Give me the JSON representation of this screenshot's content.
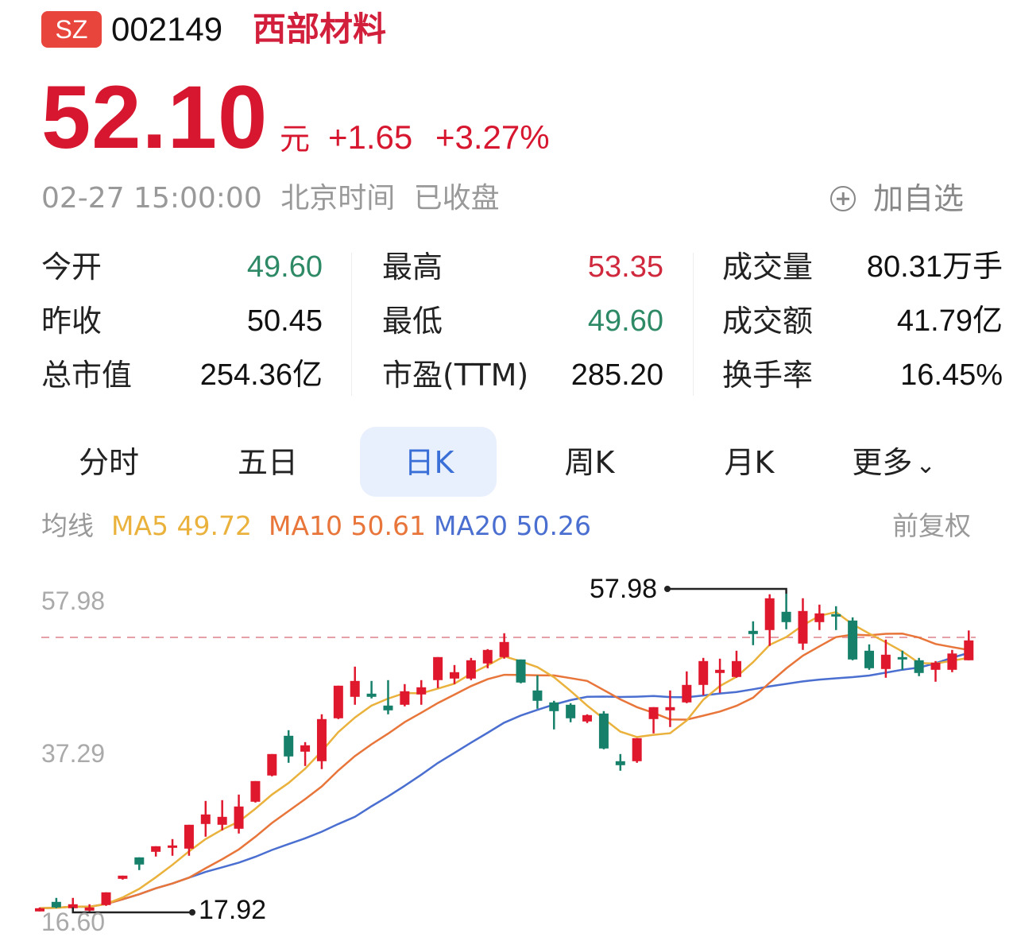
{
  "header": {
    "exchange": "SZ",
    "code": "002149",
    "name": "西部材料"
  },
  "quote": {
    "price": "52.10",
    "unit": "元",
    "change": "+1.65",
    "change_pct": "+3.27%",
    "timestamp": "02-27 15:00:00",
    "timezone": "北京时间",
    "status": "已收盘",
    "add_watchlist": "加自选",
    "add_icon": "plus-circle-icon"
  },
  "stats": [
    {
      "label": "今开",
      "value": "49.60",
      "tone": "green"
    },
    {
      "label": "昨收",
      "value": "50.45",
      "tone": "neutral"
    },
    {
      "label": "总市值",
      "value": "254.36亿",
      "tone": "neutral"
    },
    {
      "label": "最高",
      "value": "53.35",
      "tone": "red"
    },
    {
      "label": "最低",
      "value": "49.60",
      "tone": "green"
    },
    {
      "label": "市盈(TTM)",
      "value": "285.20",
      "tone": "neutral"
    },
    {
      "label": "成交量",
      "value": "80.31万手",
      "tone": "neutral"
    },
    {
      "label": "成交额",
      "value": "41.79亿",
      "tone": "neutral"
    },
    {
      "label": "换手率",
      "value": "16.45%",
      "tone": "neutral"
    }
  ],
  "tabs": [
    {
      "label": "分时"
    },
    {
      "label": "五日"
    },
    {
      "label": "日K",
      "active": true
    },
    {
      "label": "周K"
    },
    {
      "label": "月K"
    },
    {
      "label": "更多"
    }
  ],
  "ma": {
    "label": "均线",
    "ma5": "MA5 49.72",
    "ma10": "MA10 50.61",
    "ma20": "MA20 50.26",
    "adjust": "前复权"
  },
  "colors": {
    "up": "#e0182d",
    "down": "#16806a",
    "ma5": "#eab23c",
    "ma10": "#e8753a",
    "ma20": "#4a6fd0",
    "price_red": "#d7172f"
  },
  "chart_data": {
    "type": "candlestick",
    "yticks": [
      "57.98",
      "37.29",
      "16.60"
    ],
    "ylim": [
      16.6,
      57.98
    ],
    "max_label": "57.98",
    "min_label": "17.92",
    "reference_line": 52.1,
    "ohlc": [
      [
        18.0,
        18.4,
        18.5,
        18.0
      ],
      [
        19.2,
        18.5,
        19.7,
        18.4
      ],
      [
        18.4,
        18.9,
        19.7,
        17.92
      ],
      [
        18.1,
        18.5,
        18.9,
        18.0
      ],
      [
        18.8,
        20.4,
        20.4,
        18.7
      ],
      [
        22.1,
        22.5,
        22.5,
        22.0
      ],
      [
        24.8,
        23.9,
        24.8,
        23.2
      ],
      [
        25.5,
        26.2,
        26.2,
        24.9
      ],
      [
        26.0,
        26.3,
        27.1,
        25.0
      ],
      [
        25.9,
        28.9,
        28.9,
        25.0
      ],
      [
        29.0,
        30.2,
        31.9,
        27.4
      ],
      [
        28.9,
        29.9,
        32.0,
        28.2
      ],
      [
        28.4,
        31.2,
        32.7,
        27.8
      ],
      [
        31.8,
        34.4,
        34.4,
        31.7
      ],
      [
        35.1,
        37.8,
        37.8,
        35.0
      ],
      [
        40.1,
        37.5,
        40.8,
        36.7
      ],
      [
        38.1,
        38.9,
        39.3,
        36.3
      ],
      [
        36.9,
        42.2,
        42.8,
        35.9
      ],
      [
        42.3,
        46.4,
        46.4,
        42.2
      ],
      [
        45.0,
        47.0,
        48.8,
        44.0
      ],
      [
        45.4,
        45.0,
        47.0,
        44.8
      ],
      [
        43.9,
        43.3,
        47.1,
        42.8
      ],
      [
        44.0,
        45.7,
        46.6,
        43.8
      ],
      [
        45.3,
        46.2,
        47.1,
        44.0
      ],
      [
        47.1,
        50.0,
        50.0,
        46.1
      ],
      [
        47.3,
        48.1,
        49.0,
        46.6
      ],
      [
        47.3,
        49.6,
        49.9,
        47.1
      ],
      [
        49.2,
        50.9,
        51.0,
        48.6
      ],
      [
        50.0,
        51.9,
        53.0,
        49.8
      ],
      [
        49.7,
        46.8,
        49.7,
        46.7
      ],
      [
        45.8,
        44.5,
        47.7,
        43.5
      ],
      [
        44.3,
        43.2,
        44.5,
        40.9
      ],
      [
        44.0,
        42.3,
        44.2,
        41.8
      ],
      [
        41.9,
        42.7,
        42.8,
        41.7
      ],
      [
        42.9,
        38.5,
        43.2,
        38.4
      ],
      [
        36.9,
        36.4,
        37.8,
        35.7
      ],
      [
        36.9,
        39.8,
        39.8,
        36.7
      ],
      [
        42.2,
        43.7,
        43.7,
        40.4
      ],
      [
        43.3,
        43.7,
        45.8,
        41.2
      ],
      [
        44.3,
        46.5,
        48.2,
        44.2
      ],
      [
        46.5,
        49.5,
        49.9,
        45.2
      ],
      [
        48.0,
        48.4,
        49.8,
        45.5
      ],
      [
        47.5,
        49.5,
        50.8,
        47.4
      ],
      [
        53.3,
        52.9,
        54.5,
        51.5
      ],
      [
        53.4,
        57.4,
        57.9,
        51.4
      ],
      [
        55.7,
        54.4,
        57.98,
        53.5
      ],
      [
        51.7,
        55.8,
        57.4,
        50.9
      ],
      [
        54.4,
        55.5,
        56.6,
        53.4
      ],
      [
        55.4,
        55.2,
        56.4,
        53.4
      ],
      [
        54.6,
        49.7,
        55.0,
        49.6
      ],
      [
        50.8,
        48.6,
        51.6,
        48.4
      ],
      [
        48.5,
        50.3,
        52.2,
        47.4
      ],
      [
        50.0,
        49.7,
        50.8,
        48.4
      ],
      [
        49.6,
        48.0,
        49.9,
        47.6
      ],
      [
        48.4,
        49.3,
        49.5,
        46.9
      ],
      [
        48.4,
        50.45,
        50.9,
        48.1
      ],
      [
        49.6,
        52.1,
        53.35,
        49.6
      ]
    ]
  }
}
